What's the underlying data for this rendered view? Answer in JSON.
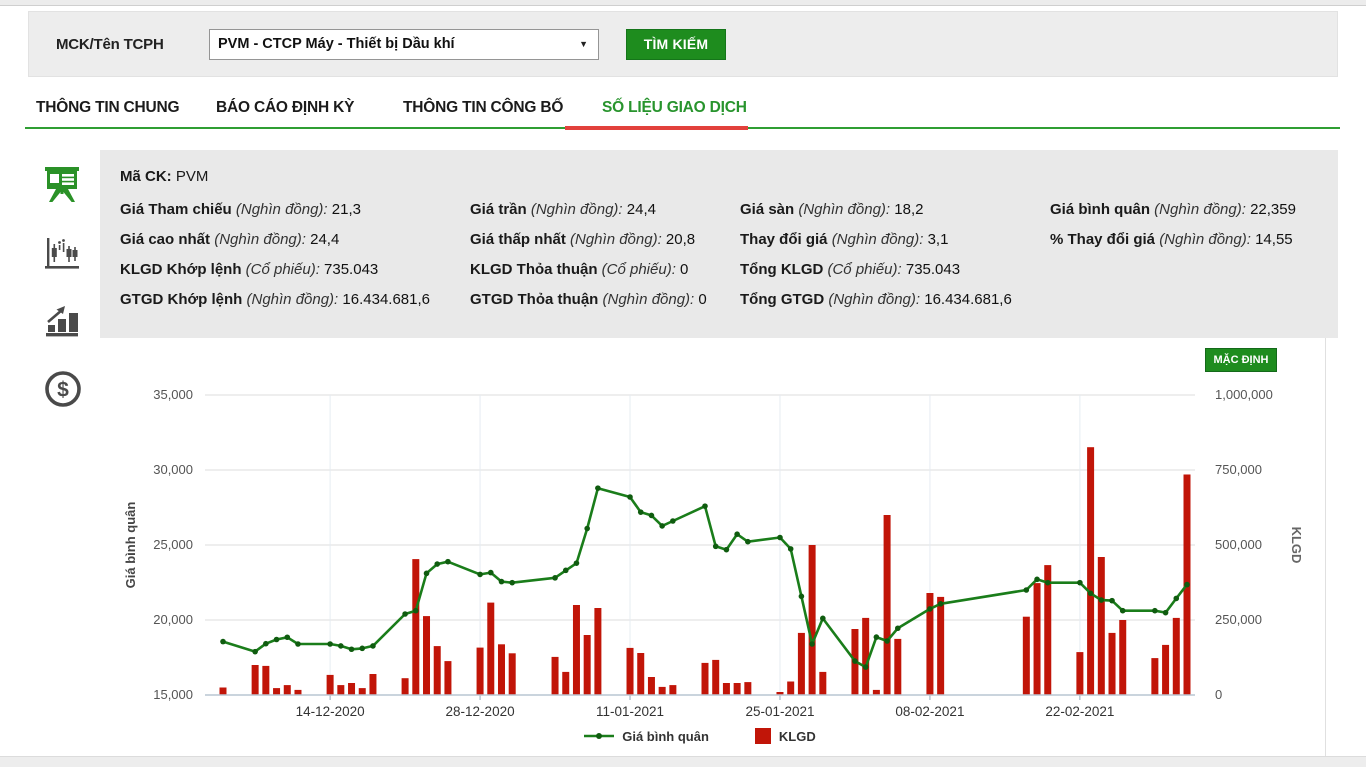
{
  "header": {
    "search_label": "MCK/Tên TCPH",
    "search_value": "PVM - CTCP Máy - Thiết bị Dầu khí",
    "search_button": "TÌM KIẾM"
  },
  "tabs": [
    {
      "label": "THÔNG TIN CHUNG",
      "active": false
    },
    {
      "label": "BÁO CÁO ĐỊNH KỲ",
      "active": false
    },
    {
      "label": "THÔNG TIN CÔNG BỐ",
      "active": false
    },
    {
      "label": "SỐ LIỆU GIAO DỊCH",
      "active": true
    }
  ],
  "sidebar_icons": [
    {
      "name": "presentation-board-icon",
      "active": true
    },
    {
      "name": "candlestick-chart-icon",
      "active": false
    },
    {
      "name": "bar-chart-icon",
      "active": false
    },
    {
      "name": "dollar-coin-icon",
      "active": false
    }
  ],
  "info": {
    "ma_ck_label": "Mã CK:",
    "ma_ck_value": "PVM",
    "rows": [
      [
        {
          "label": "Giá Tham chiếu",
          "unit": "(Nghìn đồng):",
          "value": "21,3"
        },
        {
          "label": "Giá trần",
          "unit": "(Nghìn đồng):",
          "value": "24,4"
        },
        {
          "label": "Giá sàn",
          "unit": "(Nghìn đồng):",
          "value": "18,2"
        },
        {
          "label": "Giá bình quân",
          "unit": "(Nghìn đồng):",
          "value": "22,359"
        }
      ],
      [
        {
          "label": "Giá cao nhất",
          "unit": "(Nghìn đồng):",
          "value": "24,4"
        },
        {
          "label": "Giá thấp nhất",
          "unit": "(Nghìn đồng):",
          "value": "20,8"
        },
        {
          "label": "Thay đổi giá",
          "unit": "(Nghìn đồng):",
          "value": "3,1"
        },
        {
          "label": "% Thay đổi giá",
          "unit": "(Nghìn đồng):",
          "value": "14,55"
        }
      ],
      [
        {
          "label": "KLGD Khớp lệnh",
          "unit": "(Cổ phiếu):",
          "value": "735.043"
        },
        {
          "label": "KLGD Thỏa thuận",
          "unit": "(Cổ phiếu):",
          "value": "0"
        },
        {
          "label": "Tổng KLGD",
          "unit": "(Cổ phiếu):",
          "value": "735.043"
        },
        null
      ],
      [
        {
          "label": "GTGD Khớp lệnh",
          "unit": "(Nghìn đồng):",
          "value": "16.434.681,6"
        },
        {
          "label": "GTGD Thỏa thuận",
          "unit": "(Nghìn đồng):",
          "value": "0"
        },
        {
          "label": "Tổng GTGD",
          "unit": "(Nghìn đồng):",
          "value": "16.434.681,6"
        },
        null
      ]
    ]
  },
  "chart": {
    "default_button": "MẶC ĐỊNH"
  },
  "chart_data": {
    "type": "line",
    "title": "",
    "left_axis": {
      "label": "Giá bình quân",
      "range": [
        15000,
        35000
      ],
      "tick_labels": [
        "35,000",
        "30,000",
        "25,000",
        "20,000",
        "15,000"
      ]
    },
    "right_axis": {
      "label": "KLGD",
      "range": [
        0,
        1000000
      ],
      "tick_labels": [
        "1,000,000",
        "750,000",
        "500,000",
        "250,000",
        "0"
      ]
    },
    "x_tick_labels": [
      "14-12-2020",
      "28-12-2020",
      "11-01-2021",
      "25-01-2021",
      "08-02-2021",
      "22-02-2021"
    ],
    "grid": true,
    "legend_position": "bottom",
    "colors": {
      "line": "#1a7d1a",
      "dot": "#0f5c0f",
      "bar": "#c11508",
      "gridline": "#dcdcdc",
      "v_gridline": "#e6ecf2",
      "axis": "#b9c6d2"
    },
    "dates": [
      "04-12-2020",
      "07-12-2020",
      "08-12-2020",
      "09-12-2020",
      "10-12-2020",
      "11-12-2020",
      "14-12-2020",
      "15-12-2020",
      "16-12-2020",
      "17-12-2020",
      "18-12-2020",
      "21-12-2020",
      "22-12-2020",
      "23-12-2020",
      "24-12-2020",
      "25-12-2020",
      "28-12-2020",
      "29-12-2020",
      "30-12-2020",
      "31-12-2020",
      "04-01-2021",
      "05-01-2021",
      "06-01-2021",
      "07-01-2021",
      "08-01-2021",
      "11-01-2021",
      "12-01-2021",
      "13-01-2021",
      "14-01-2021",
      "15-01-2021",
      "18-01-2021",
      "19-01-2021",
      "20-01-2021",
      "21-01-2021",
      "22-01-2021",
      "25-01-2021",
      "26-01-2021",
      "27-01-2021",
      "28-01-2021",
      "29-01-2021",
      "01-02-2021",
      "02-02-2021",
      "03-02-2021",
      "04-02-2021",
      "05-02-2021",
      "08-02-2021",
      "09-02-2021",
      "17-02-2021",
      "18-02-2021",
      "19-02-2021",
      "22-02-2021",
      "23-02-2021",
      "24-02-2021",
      "25-02-2021",
      "26-02-2021",
      "01-03-2021",
      "02-03-2021",
      "03-03-2021",
      "04-03-2021"
    ],
    "series": [
      {
        "name": "Giá bình quân",
        "type": "line",
        "axis": "left",
        "values": [
          18560,
          17890,
          18420,
          18700,
          18850,
          18400,
          18400,
          18270,
          18050,
          18110,
          18270,
          20400,
          20620,
          23110,
          23730,
          23890,
          23040,
          23160,
          22560,
          22490,
          22810,
          23310,
          23790,
          26100,
          28790,
          28200,
          27190,
          26970,
          26270,
          26600,
          27590,
          24910,
          24690,
          25720,
          25220,
          25500,
          24740,
          21580,
          18400,
          20110,
          17260,
          16860,
          18860,
          18600,
          19450,
          20740,
          21080,
          22000,
          22710,
          22490,
          22490,
          21780,
          21330,
          21290,
          20620,
          20620,
          20490,
          21440,
          22360
        ]
      },
      {
        "name": "KLGD",
        "type": "bar",
        "axis": "right",
        "values": [
          25000,
          100000,
          97000,
          23000,
          33000,
          17000,
          67000,
          33000,
          40000,
          23000,
          70000,
          56000,
          453000,
          263000,
          163000,
          113000,
          158000,
          308000,
          169000,
          139000,
          127000,
          77000,
          300000,
          200000,
          290000,
          157000,
          140000,
          60000,
          27000,
          33000,
          107000,
          117000,
          40000,
          40000,
          43000,
          10000,
          45000,
          207000,
          500000,
          77000,
          220000,
          257000,
          17000,
          600000,
          187000,
          340000,
          327000,
          261000,
          373000,
          433000,
          143000,
          826000,
          460000,
          207000,
          250000,
          123000,
          167000,
          257000,
          735043
        ]
      }
    ]
  }
}
